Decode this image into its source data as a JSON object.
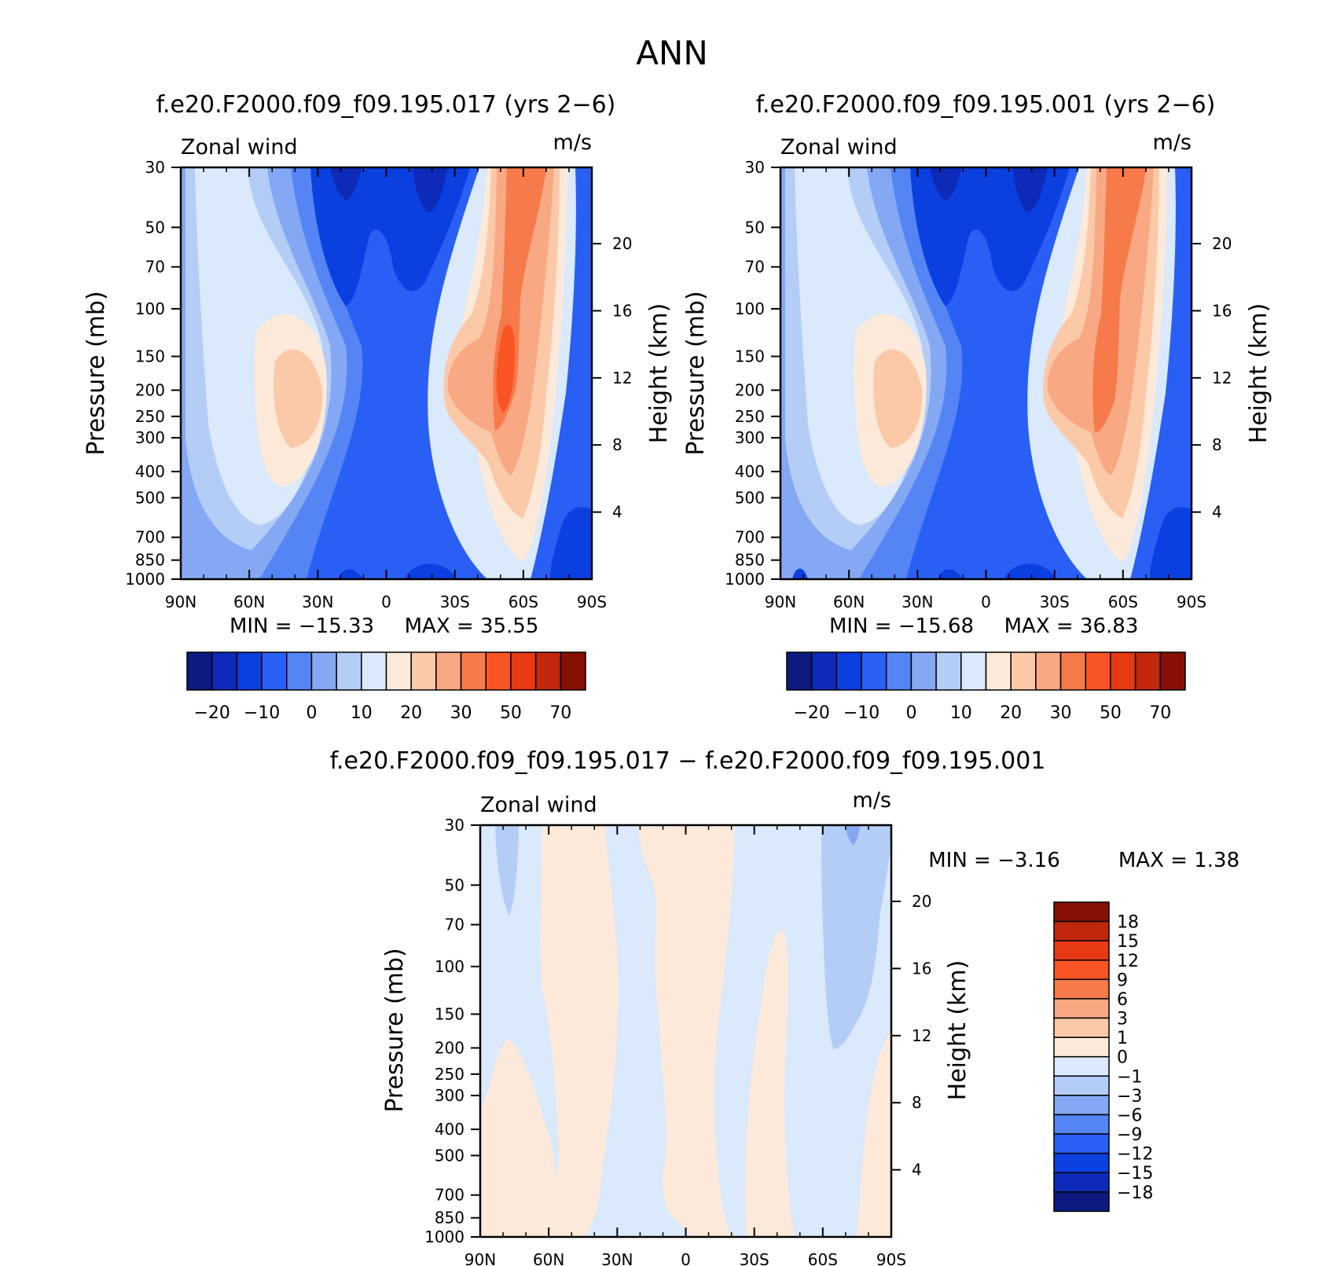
{
  "page": {
    "title": "ANN"
  },
  "chart_data": [
    {
      "type": "heatmap",
      "title": "f.e20.F2000.f09_f09.195.017 (yrs 2−6)",
      "left_string": "Zonal wind",
      "right_string": "m/s",
      "ylabel": "Pressure (mb)",
      "ylabel_right": "Height (km)",
      "x_ticks": [
        "90N",
        "60N",
        "30N",
        "0",
        "30S",
        "60S",
        "90S"
      ],
      "y_ticks": [
        30,
        50,
        70,
        100,
        150,
        200,
        250,
        300,
        400,
        500,
        700,
        850,
        1000
      ],
      "y_ticks_right": [
        20,
        16,
        12,
        8,
        4
      ],
      "ylim": [
        1000,
        30
      ],
      "min_label": "MIN = −15.33",
      "max_label": "MAX = 35.55",
      "min": -15.33,
      "max": 35.55,
      "levels": [
        -25,
        -20,
        -15,
        -10,
        -5,
        0,
        5,
        10,
        15,
        20,
        25,
        30,
        40,
        50,
        60,
        70
      ],
      "colorbar_labels": [
        "−20",
        "−10",
        "0",
        "10",
        "20",
        "30",
        "50",
        "70"
      ],
      "colors": [
        "#0d1a80",
        "#0d2bb8",
        "#0a3fe0",
        "#2a5ff5",
        "#5585f5",
        "#85a8f5",
        "#b4cdf7",
        "#dae9fb",
        "#fde9d9",
        "#fcc9a8",
        "#f8a983",
        "#f77a4b",
        "#f95424",
        "#e63a14",
        "#c0270b",
        "#861003"
      ]
    },
    {
      "type": "heatmap",
      "title": "f.e20.F2000.f09_f09.195.001 (yrs 2−6)",
      "left_string": "Zonal wind",
      "right_string": "m/s",
      "ylabel": "Pressure (mb)",
      "ylabel_right": "Height (km)",
      "x_ticks": [
        "90N",
        "60N",
        "30N",
        "0",
        "30S",
        "60S",
        "90S"
      ],
      "y_ticks": [
        30,
        50,
        70,
        100,
        150,
        200,
        250,
        300,
        400,
        500,
        700,
        850,
        1000
      ],
      "y_ticks_right": [
        20,
        16,
        12,
        8,
        4
      ],
      "ylim": [
        1000,
        30
      ],
      "min_label": "MIN = −15.68",
      "max_label": "MAX = 36.83",
      "min": -15.68,
      "max": 36.83,
      "levels": [
        -25,
        -20,
        -15,
        -10,
        -5,
        0,
        5,
        10,
        15,
        20,
        25,
        30,
        40,
        50,
        60,
        70
      ],
      "colorbar_labels": [
        "−20",
        "−10",
        "0",
        "10",
        "20",
        "30",
        "50",
        "70"
      ],
      "colors": [
        "#0d1a80",
        "#0d2bb8",
        "#0a3fe0",
        "#2a5ff5",
        "#5585f5",
        "#85a8f5",
        "#b4cdf7",
        "#dae9fb",
        "#fde9d9",
        "#fcc9a8",
        "#f8a983",
        "#f77a4b",
        "#f95424",
        "#e63a14",
        "#c0270b",
        "#861003"
      ]
    },
    {
      "type": "heatmap",
      "title": "f.e20.F2000.f09_f09.195.017 − f.e20.F2000.f09_f09.195.001",
      "left_string": "Zonal wind",
      "right_string": "m/s",
      "ylabel": "Pressure (mb)",
      "ylabel_right": "Height (km)",
      "x_ticks": [
        "90N",
        "60N",
        "30N",
        "0",
        "30S",
        "60S",
        "90S"
      ],
      "y_ticks": [
        30,
        50,
        70,
        100,
        150,
        200,
        250,
        300,
        400,
        500,
        700,
        850,
        1000
      ],
      "y_ticks_right": [
        20,
        16,
        12,
        8,
        4
      ],
      "ylim": [
        1000,
        30
      ],
      "min_label": "MIN = −3.16",
      "max_label": "MAX = 1.38",
      "min": -3.16,
      "max": 1.38,
      "levels": [
        -18,
        -15,
        -12,
        -9,
        -6,
        -3,
        -1,
        0,
        1,
        3,
        6,
        9,
        12,
        15,
        18
      ],
      "colorbar_labels": [
        "18",
        "15",
        "12",
        "9",
        "6",
        "3",
        "1",
        "0",
        "−1",
        "−3",
        "−6",
        "−9",
        "−12",
        "−15",
        "−18"
      ],
      "colors": [
        "#861003",
        "#c0270b",
        "#e63a14",
        "#f95424",
        "#f77a4b",
        "#f8a983",
        "#fcc9a8",
        "#fde9d9",
        "#dae9fb",
        "#b4cdf7",
        "#85a8f5",
        "#5585f5",
        "#2a5ff5",
        "#0a3fe0",
        "#0d2bb8",
        "#0d1a80"
      ]
    }
  ]
}
